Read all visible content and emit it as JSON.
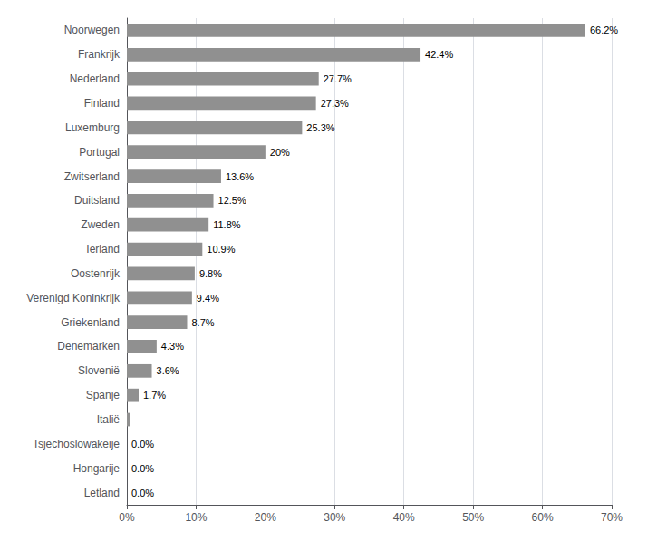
{
  "chart_data": {
    "type": "bar",
    "orientation": "horizontal",
    "categories": [
      "Letland",
      "Hongarije",
      "Tsjechoslowakeije",
      "Italië",
      "Spanje",
      "Slovenië",
      "Denemarken",
      "Griekenland",
      "Verenigd Koninkrijk",
      "Oostenrijk",
      "Ierland",
      "Zweden",
      "Duitsland",
      "Zwitserland",
      "Portugal",
      "Luxemburg",
      "Finland",
      "Nederland",
      "Frankrijk",
      "Noorwegen"
    ],
    "values": [
      0.0,
      0.0,
      0.0,
      0.4,
      1.7,
      3.6,
      4.3,
      8.7,
      9.4,
      9.8,
      10.9,
      11.8,
      12.5,
      13.6,
      20.0,
      25.3,
      27.3,
      27.7,
      42.4,
      66.2
    ],
    "value_labels": [
      "0.0%",
      "0.0%",
      "0.0%",
      null,
      "1.7%",
      "3.6%",
      "4.3%",
      "8.7%",
      "9.4%",
      "9.8%",
      "10.9%",
      "11.8%",
      "12.5%",
      "13.6%",
      "20%",
      "25.3%",
      "27.3%",
      "27.7%",
      "42.4%",
      "66.2%"
    ],
    "data_labels": true,
    "color": "#909090",
    "xlim": [
      0,
      70
    ],
    "xticks": [
      {
        "value": 0,
        "label": "0%"
      },
      {
        "value": 10,
        "label": "10%"
      },
      {
        "value": 20,
        "label": "20%"
      },
      {
        "value": 30,
        "label": "30%"
      },
      {
        "value": 40,
        "label": "40%"
      },
      {
        "value": 50,
        "label": "50%"
      },
      {
        "value": 60,
        "label": "60%"
      },
      {
        "value": 70,
        "label": "70%"
      }
    ],
    "grid": true
  }
}
